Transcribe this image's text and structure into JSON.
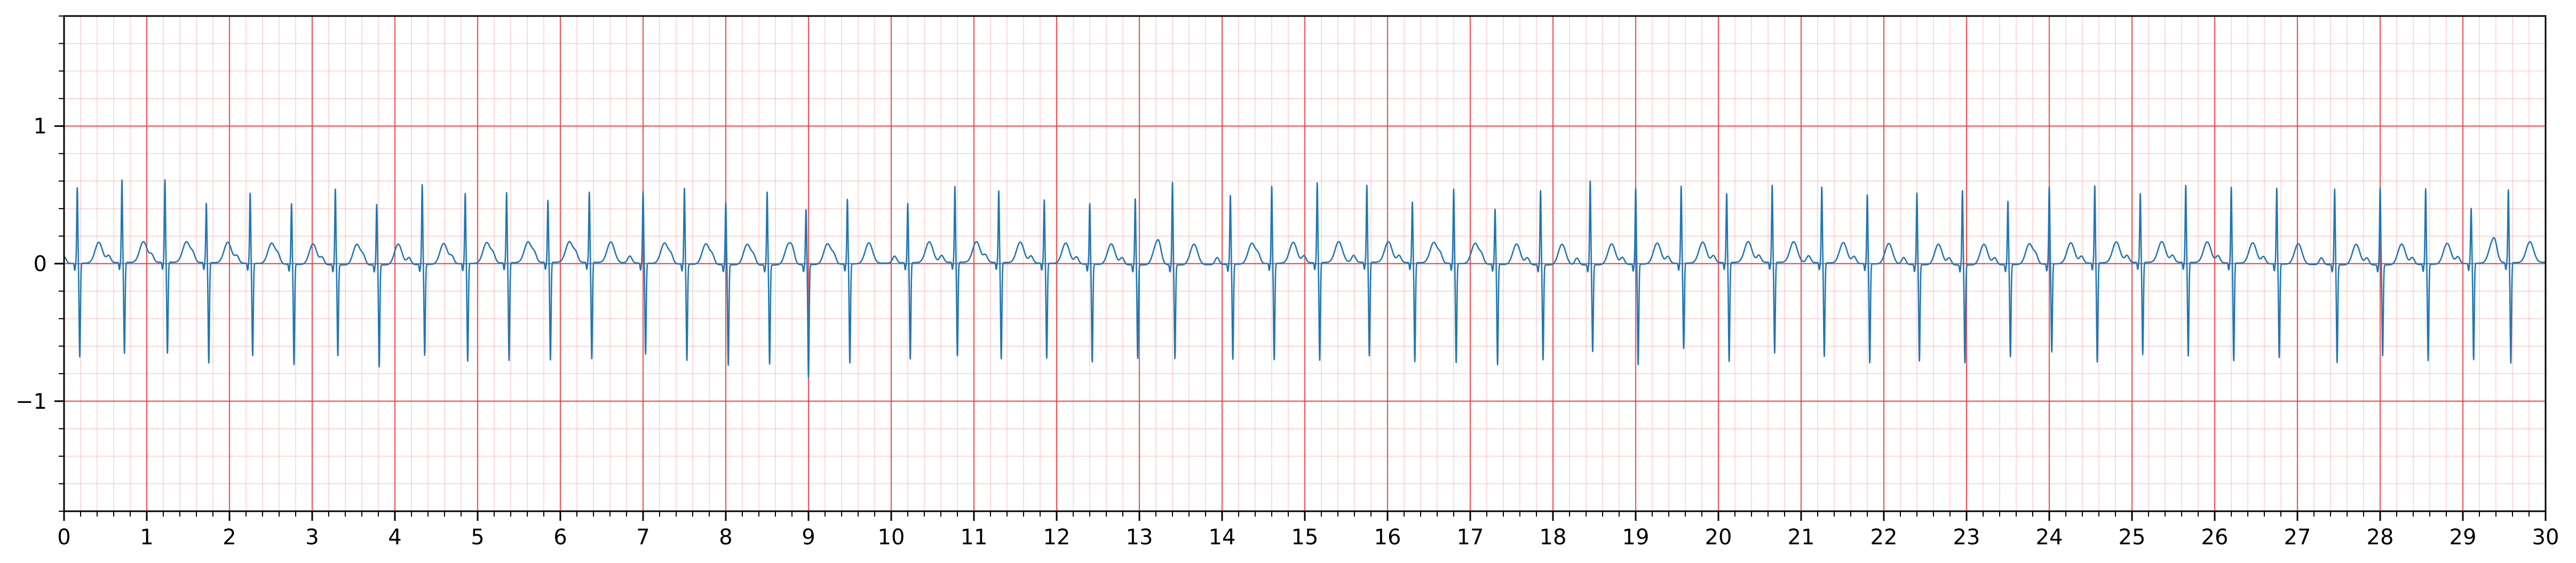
{
  "chart_data": {
    "type": "line",
    "title": "",
    "xlabel": "",
    "ylabel": "",
    "xlim": [
      0,
      30
    ],
    "ylim": [
      -1.8,
      1.8
    ],
    "x_major_step": 1,
    "x_minor_step": 0.2,
    "y_major_step": 1,
    "y_minor_step": 0.2,
    "grid": true,
    "legend": "none",
    "x_ticks": [
      0,
      1,
      2,
      3,
      4,
      5,
      6,
      7,
      8,
      9,
      10,
      11,
      12,
      13,
      14,
      15,
      16,
      17,
      18,
      19,
      20,
      21,
      22,
      23,
      24,
      25,
      26,
      27,
      28,
      29,
      30
    ],
    "x_tick_labels": [
      "0",
      "1",
      "2",
      "3",
      "4",
      "5",
      "6",
      "7",
      "8",
      "9",
      "10",
      "11",
      "12",
      "13",
      "14",
      "15",
      "16",
      "17",
      "18",
      "19",
      "20",
      "21",
      "22",
      "23",
      "24",
      "25",
      "26",
      "27",
      "28",
      "29",
      "30"
    ],
    "y_ticks": [
      -1,
      0,
      1
    ],
    "y_tick_labels": [
      "−1",
      "0",
      "1"
    ],
    "colors": {
      "trace": "#1f77b4",
      "grid_major": "#ee3333",
      "grid_minor": "#ff9999",
      "background": "#ffffff"
    },
    "series": [
      {
        "beats": [
          [
            0.16,
            0.55,
            -0.68
          ],
          [
            0.7,
            0.6,
            -0.66
          ],
          [
            1.22,
            0.6,
            -0.66
          ],
          [
            1.72,
            0.43,
            -0.73
          ],
          [
            2.25,
            0.51,
            -0.67
          ],
          [
            2.75,
            0.44,
            -0.73
          ],
          [
            3.28,
            0.55,
            -0.66
          ],
          [
            3.78,
            0.44,
            -0.74
          ],
          [
            4.33,
            0.58,
            -0.66
          ],
          [
            4.85,
            0.51,
            -0.71
          ],
          [
            5.35,
            0.51,
            -0.71
          ],
          [
            5.85,
            0.45,
            -0.71
          ],
          [
            6.35,
            0.51,
            -0.7
          ],
          [
            7.0,
            0.52,
            -0.66
          ],
          [
            7.5,
            0.55,
            -0.7
          ],
          [
            8.0,
            0.45,
            -0.73
          ],
          [
            8.5,
            0.53,
            -0.72
          ],
          [
            8.97,
            0.4,
            -0.82
          ],
          [
            9.47,
            0.47,
            -0.72
          ],
          [
            10.2,
            0.43,
            -0.7
          ],
          [
            10.77,
            0.55,
            -0.68
          ],
          [
            11.3,
            0.52,
            -0.7
          ],
          [
            11.85,
            0.46,
            -0.69
          ],
          [
            12.4,
            0.44,
            -0.71
          ],
          [
            12.95,
            0.48,
            -0.68
          ],
          [
            13.4,
            0.6,
            -0.68
          ],
          [
            14.1,
            0.5,
            -0.69
          ],
          [
            14.6,
            0.56,
            -0.7
          ],
          [
            15.15,
            0.58,
            -0.71
          ],
          [
            15.75,
            0.56,
            -0.68
          ],
          [
            16.3,
            0.44,
            -0.72
          ],
          [
            16.8,
            0.54,
            -0.72
          ],
          [
            17.3,
            0.4,
            -0.73
          ],
          [
            17.85,
            0.54,
            -0.69
          ],
          [
            18.45,
            0.61,
            -0.63
          ],
          [
            19.0,
            0.55,
            -0.73
          ],
          [
            19.55,
            0.56,
            -0.62
          ],
          [
            20.1,
            0.5,
            -0.72
          ],
          [
            20.65,
            0.56,
            -0.66
          ],
          [
            21.25,
            0.55,
            -0.68
          ],
          [
            21.8,
            0.5,
            -0.72
          ],
          [
            22.4,
            0.52,
            -0.7
          ],
          [
            22.95,
            0.54,
            -0.71
          ],
          [
            23.5,
            0.46,
            -0.67
          ],
          [
            24.0,
            0.56,
            -0.64
          ],
          [
            24.55,
            0.56,
            -0.72
          ],
          [
            25.1,
            0.5,
            -0.67
          ],
          [
            25.65,
            0.56,
            -0.68
          ],
          [
            26.2,
            0.55,
            -0.71
          ],
          [
            26.75,
            0.55,
            -0.68
          ],
          [
            27.45,
            0.55,
            -0.71
          ],
          [
            28.0,
            0.56,
            -0.66
          ],
          [
            28.55,
            0.55,
            -0.7
          ],
          [
            29.1,
            0.4,
            -0.7
          ],
          [
            29.55,
            0.53,
            -0.73
          ]
        ]
      }
    ]
  }
}
